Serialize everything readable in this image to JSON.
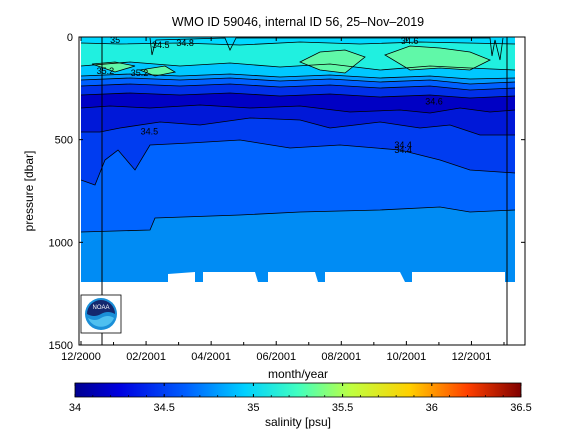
{
  "chart_data": {
    "type": "heatmap",
    "title": "WMO ID 59046, internal ID 56, 25–Nov–2019",
    "xlabel": "month/year",
    "ylabel": "pressure [dbar]",
    "x_ticks": [
      "12/2000",
      "02/2001",
      "04/2001",
      "06/2001",
      "08/2001",
      "10/2001",
      "12/2001"
    ],
    "x_range_months_from_dec2000": [
      0,
      13.4
    ],
    "y_ticks": [
      0,
      500,
      1000,
      1500
    ],
    "y_range": [
      0,
      1500
    ],
    "y_reversed": true,
    "colorbar": {
      "label": "salinity [psu]",
      "ticks": [
        34,
        34.5,
        35,
        35.5,
        36,
        36.5
      ],
      "range": [
        34,
        36.5
      ]
    },
    "contour_labels": [
      {
        "text": "35",
        "month": 1.05,
        "pressure": 15
      },
      {
        "text": "34.8",
        "month": 3.2,
        "pressure": 30
      },
      {
        "text": "34.5",
        "month": 2.45,
        "pressure": 40
      },
      {
        "text": "34.6",
        "month": 10.1,
        "pressure": 20
      },
      {
        "text": "35.2",
        "month": 0.75,
        "pressure": 165
      },
      {
        "text": "35.2",
        "month": 1.8,
        "pressure": 175
      },
      {
        "text": "34.6",
        "month": 10.85,
        "pressure": 315
      },
      {
        "text": "34.5",
        "month": 2.1,
        "pressure": 460
      },
      {
        "text": "34.4",
        "month": 9.9,
        "pressure": 525
      },
      {
        "text": "34.4",
        "month": 9.9,
        "pressure": 550
      }
    ],
    "profile_extent_pressure": 1200,
    "colors": {
      "c34_30": "#0000aa",
      "c34_35": "#0000c8",
      "c34_40": "#0014e6",
      "c34_45": "#003cff",
      "c34_50": "#0064ff",
      "c34_60": "#008cff",
      "c34_70": "#00b4ff",
      "c34_80": "#00d8ff",
      "c35_00": "#20f0e0",
      "c35_20": "#60f8b0",
      "c35_40": "#a0ff80"
    },
    "logo": "noaa-logo"
  }
}
